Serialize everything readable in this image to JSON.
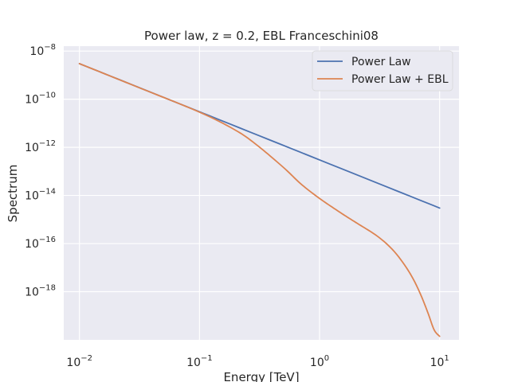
{
  "chart_data": {
    "type": "line",
    "title": "Power law, z = 0.2, EBL Franceschini08",
    "xlabel": "Energy [TeV]",
    "ylabel": "Spectrum",
    "xscale": "log",
    "yscale": "log",
    "xlim": [
      0.0074,
      14.5
    ],
    "ylim": [
      1e-20,
      1.6e-08
    ],
    "x_ticks": [
      {
        "value": 0.01,
        "base": "10",
        "exp": "−2"
      },
      {
        "value": 0.1,
        "base": "10",
        "exp": "−1"
      },
      {
        "value": 1,
        "base": "10",
        "exp": "0"
      },
      {
        "value": 10,
        "base": "10",
        "exp": "1"
      }
    ],
    "y_ticks": [
      {
        "value": 1e-08,
        "base": "10",
        "exp": "−8"
      },
      {
        "value": 1e-10,
        "base": "10",
        "exp": "−10"
      },
      {
        "value": 1e-12,
        "base": "10",
        "exp": "−12"
      },
      {
        "value": 1e-14,
        "base": "10",
        "exp": "−14"
      },
      {
        "value": 1e-16,
        "base": "10",
        "exp": "−16"
      },
      {
        "value": 1e-18,
        "base": "10",
        "exp": "−18"
      }
    ],
    "grid": true,
    "legend_position": "top-right",
    "series": [
      {
        "name": "Power Law",
        "color": "#4c72b0",
        "x": [
          0.01,
          0.1,
          1,
          10
        ],
        "y": [
          3e-09,
          3e-11,
          3e-13,
          3e-15
        ]
      },
      {
        "name": "Power Law + EBL",
        "color": "#dd8452",
        "x": [
          0.01,
          0.03,
          0.1,
          0.2,
          0.3,
          0.5,
          0.7,
          1,
          1.5,
          2,
          3,
          4,
          5,
          6,
          7,
          8,
          9,
          10
        ],
        "y": [
          3e-09,
          3.3e-10,
          2.9e-11,
          5.1e-12,
          1.25e-12,
          1.46e-13,
          3e-14,
          7.5e-15,
          1.9e-15,
          7.6e-16,
          2.1e-16,
          6e-17,
          1.5e-17,
          3.5e-18,
          7e-19,
          1.3e-19,
          2.6e-20,
          1.4e-20
        ]
      }
    ]
  }
}
